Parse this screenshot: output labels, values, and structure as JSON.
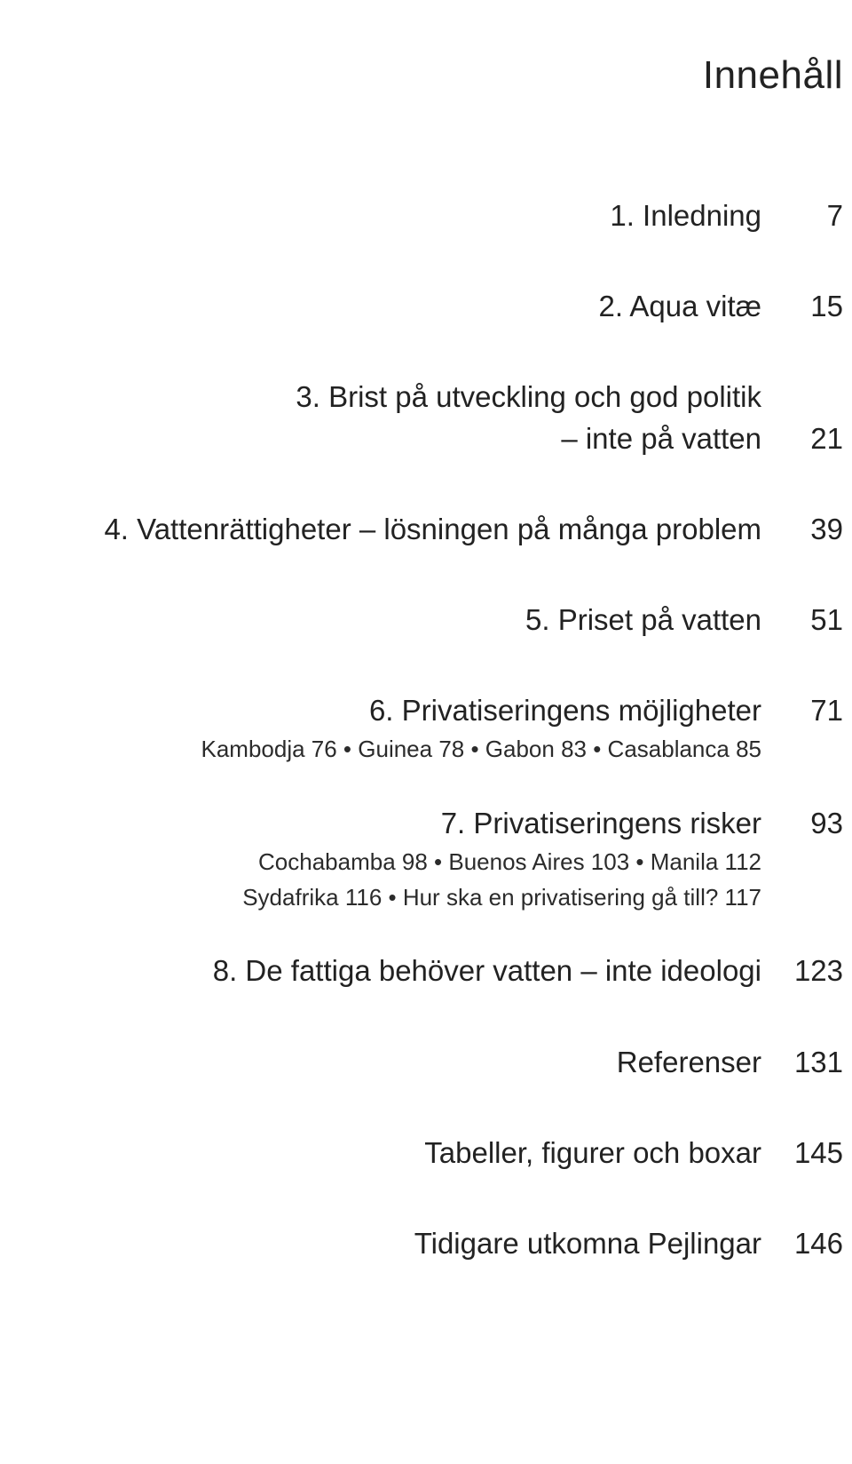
{
  "title": "Innehåll",
  "toc": {
    "e1": {
      "label": "1. Inledning",
      "page": "7"
    },
    "e2": {
      "label": "2. Aqua vitæ",
      "page": "15"
    },
    "e3": {
      "label": "3. Brist på utveckling och god politik",
      "sublabel": "– inte på vatten",
      "page": "21"
    },
    "e4": {
      "label": "4. Vattenrättigheter – lösningen på många problem",
      "page": "39"
    },
    "e5": {
      "label": "5. Priset på vatten",
      "page": "51"
    },
    "e6": {
      "label": "6. Privatiseringens möjligheter",
      "page": "71",
      "detail": "Kambodja 76 • Guinea 78 • Gabon 83 • Casablanca 85"
    },
    "e7": {
      "label": "7. Privatiseringens risker",
      "page": "93",
      "detail1": "Cochabamba 98 • Buenos Aires 103 • Manila 112",
      "detail2": "Sydafrika 116 • Hur ska en privatisering gå till? 117"
    },
    "e8": {
      "label": "8. De fattiga behöver vatten – inte ideologi",
      "page": "123"
    },
    "e9": {
      "label": "Referenser",
      "page": "131"
    },
    "e10": {
      "label": "Tabeller, figurer och boxar",
      "page": "145"
    },
    "e11": {
      "label": "Tidigare utkomna Pejlingar",
      "page": "146"
    }
  }
}
